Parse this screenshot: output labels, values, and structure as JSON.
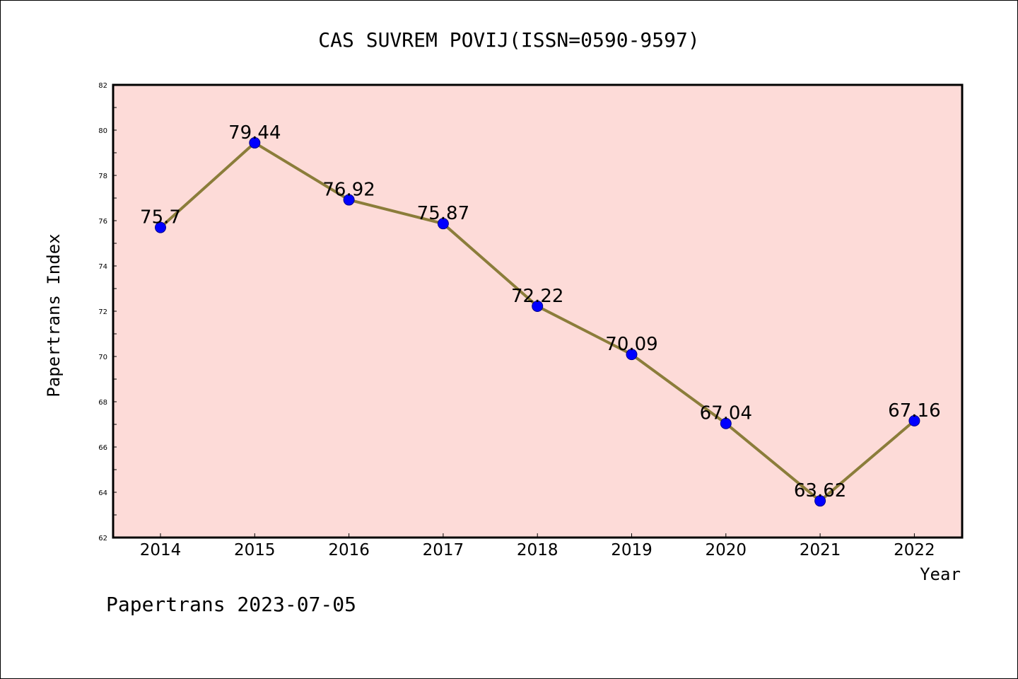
{
  "chart_data": {
    "type": "line",
    "title": "CAS SUVREM POVIJ(ISSN=0590-9597)",
    "xlabel": "Year",
    "ylabel": "Papertrans Index",
    "categories": [
      "2014",
      "2015",
      "2016",
      "2017",
      "2018",
      "2019",
      "2020",
      "2021",
      "2022"
    ],
    "values": [
      75.7,
      79.44,
      76.92,
      75.87,
      72.22,
      70.09,
      67.04,
      63.62,
      67.16
    ],
    "value_labels": [
      "75.7",
      "79.44",
      "76.92",
      "75.87",
      "72.22",
      "70.09",
      "67.04",
      "63.62",
      "67.16"
    ],
    "ylim": [
      62,
      82
    ],
    "yticks": [
      "62",
      "64",
      "66",
      "68",
      "70",
      "72",
      "74",
      "76",
      "78",
      "80",
      "82"
    ],
    "grid": false,
    "colors": {
      "plot_background": "#fddbd8",
      "line": "#8b7d3a",
      "marker": "#0000ff"
    }
  },
  "footer": "Papertrans 2023-07-05"
}
